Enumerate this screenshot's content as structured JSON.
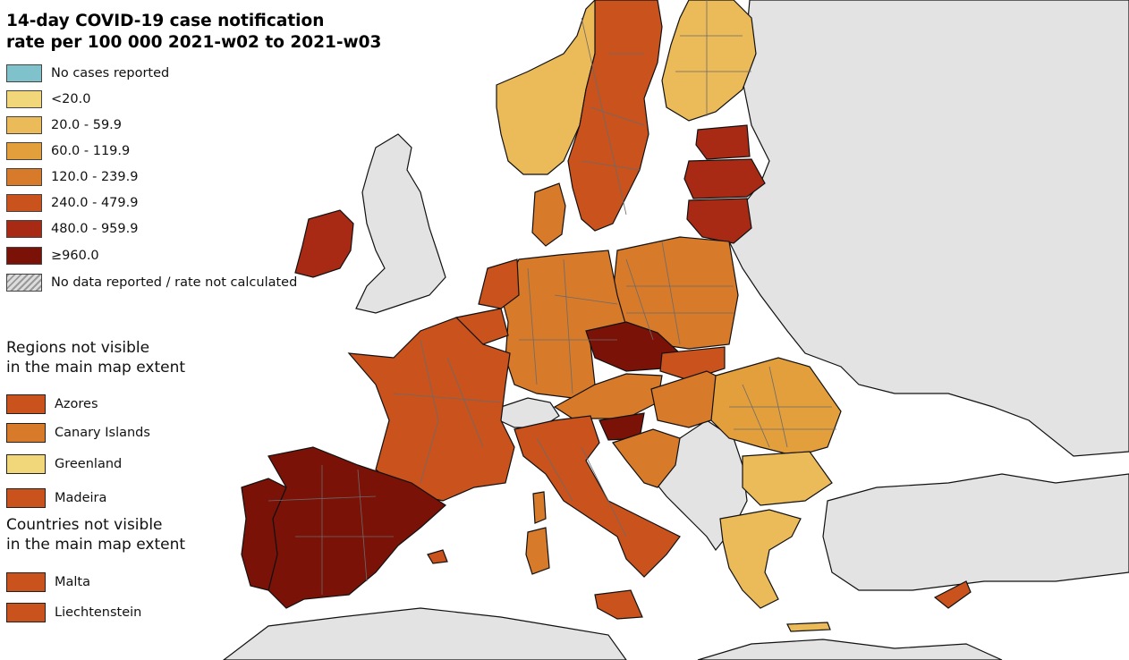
{
  "title": {
    "line1": "14-day COVID-19 case notification",
    "line2": "rate per 100 000 2021-w02 to 2021-w03"
  },
  "legend": [
    {
      "label": "No cases reported",
      "color": "#7fc2cb"
    },
    {
      "label": "<20.0",
      "color": "#f2d77a"
    },
    {
      "label": "20.0 - 59.9",
      "color": "#ebbb5a"
    },
    {
      "label": "60.0 - 119.9",
      "color": "#e39f3c"
    },
    {
      "label": "120.0 - 239.9",
      "color": "#d77a2a"
    },
    {
      "label": "240.0 - 479.9",
      "color": "#c9521d"
    },
    {
      "label": "480.0 - 959.9",
      "color": "#a82a15"
    },
    {
      "label": "≥960.0",
      "color": "#7a1208"
    },
    {
      "label": "No data reported / rate not calculated",
      "color": "hatch"
    }
  ],
  "regions_section": {
    "heading_line1": "Regions not visible",
    "heading_line2": "in the main map extent",
    "items": [
      {
        "label": "Azores",
        "color": "#c9521d"
      },
      {
        "label": "Canary Islands",
        "color": "#d77a2a"
      },
      {
        "label": "Greenland",
        "color": "#f2d77a"
      },
      {
        "label": "Madeira",
        "color": "#c9521d"
      }
    ]
  },
  "countries_section": {
    "heading_line1": "Countries not visible",
    "heading_line2": "in the main map extent",
    "items": [
      {
        "label": "Malta",
        "color": "#c9521d"
      },
      {
        "label": "Liechtenstein",
        "color": "#c9521d"
      }
    ]
  },
  "map_colors": {
    "sea": "#ffffff",
    "non_eu_land": "#e3e3e3",
    "border": "#111111",
    "inner_border": "#6b6b6b"
  }
}
